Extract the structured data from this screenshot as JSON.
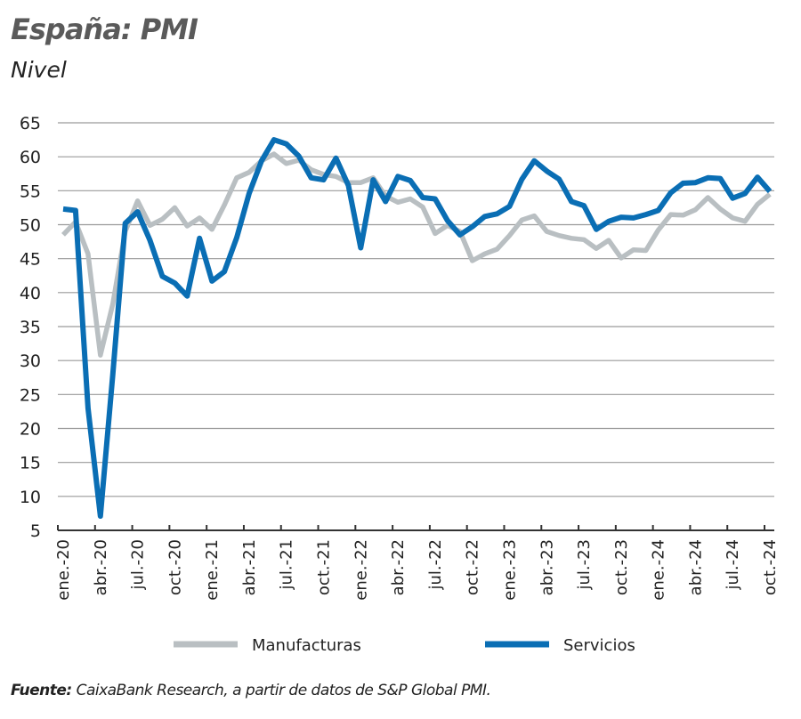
{
  "title": "España: PMI",
  "subtitle": "Nivel",
  "source": {
    "label": "Fuente:",
    "text": " CaixaBank Research, a partir de datos de S&P Global PMI."
  },
  "chart_data": {
    "type": "line",
    "ylim": [
      5,
      65
    ],
    "yticks": [
      5,
      10,
      15,
      20,
      25,
      30,
      35,
      40,
      45,
      50,
      55,
      60,
      65
    ],
    "grid": true,
    "legend_position": "bottom",
    "xtick_labels": [
      "ene.-20",
      "abr.-20",
      "jul.-20",
      "oct.-20",
      "ene.-21",
      "abr.-21",
      "jul.-21",
      "oct.-21",
      "ene.-22",
      "abr.-22",
      "jul.-22",
      "oct.-22",
      "ene.-23",
      "abr.-23",
      "jul.-23",
      "oct.-23",
      "ene.-24",
      "abr.-24",
      "jul.-24",
      "oct.-24"
    ],
    "x_start": "2020-01",
    "x_end": "2024-10",
    "x_frequency": "monthly",
    "series": [
      {
        "name": "Manufacturas",
        "color": "#b9bfc2",
        "values": [
          48.5,
          50.4,
          45.7,
          30.8,
          38.3,
          49.0,
          53.5,
          49.9,
          50.8,
          52.5,
          49.8,
          51.0,
          49.3,
          52.9,
          56.9,
          57.7,
          59.4,
          60.4,
          59.0,
          59.5,
          58.1,
          57.4,
          57.1,
          56.2,
          56.2,
          56.9,
          54.2,
          53.3,
          53.8,
          52.6,
          48.7,
          49.9,
          49.0,
          44.7,
          45.7,
          46.4,
          48.4,
          50.7,
          51.3,
          49.0,
          48.4,
          48.0,
          47.8,
          46.5,
          47.7,
          45.1,
          46.3,
          46.2,
          49.2,
          51.5,
          51.4,
          52.2,
          54.0,
          52.3,
          51.0,
          50.5,
          53.0,
          54.5
        ]
      },
      {
        "name": "Servicios",
        "color": "#0a6eb4",
        "values": [
          52.3,
          52.1,
          23.0,
          7.1,
          27.9,
          50.2,
          51.9,
          47.7,
          42.4,
          41.4,
          39.5,
          48.0,
          41.7,
          43.1,
          48.1,
          54.6,
          59.4,
          62.5,
          61.9,
          60.1,
          56.9,
          56.6,
          59.8,
          55.8,
          46.6,
          56.6,
          53.4,
          57.1,
          56.5,
          54.0,
          53.8,
          50.6,
          48.5,
          49.7,
          51.2,
          51.6,
          52.7,
          56.7,
          59.4,
          57.9,
          56.7,
          53.4,
          52.8,
          49.3,
          50.5,
          51.1,
          51.0,
          51.5,
          52.1,
          54.7,
          56.1,
          56.2,
          56.9,
          56.8,
          53.9,
          54.6,
          57.0,
          54.9
        ]
      }
    ]
  }
}
